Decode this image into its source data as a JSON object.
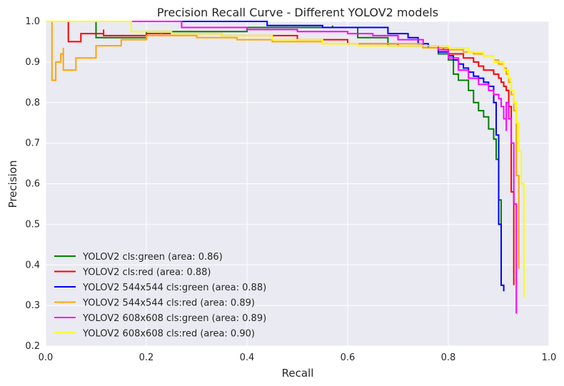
{
  "chart_data": {
    "type": "line",
    "title": "Precision Recall Curve - Different YOLOV2 models",
    "xlabel": "Recall",
    "ylabel": "Precision",
    "xlim": [
      0.0,
      1.0
    ],
    "ylim": [
      0.2,
      1.0
    ],
    "xticks": [
      "0.0",
      "0.2",
      "0.4",
      "0.6",
      "0.8",
      "1.0"
    ],
    "yticks": [
      "0.2",
      "0.3",
      "0.4",
      "0.5",
      "0.6",
      "0.7",
      "0.8",
      "0.9",
      "1.0"
    ],
    "grid": true,
    "legend_position": "lower-left",
    "background_color": "#eaeaf2",
    "series": [
      {
        "name": "YOLOV2 cls:green (area: 0.86)",
        "color": "#008000",
        "x": [
          0.0,
          0.1,
          0.1,
          0.2,
          0.4,
          0.57,
          0.57,
          0.62,
          0.62,
          0.68,
          0.68,
          0.75,
          0.75,
          0.78,
          0.78,
          0.8,
          0.8,
          0.81,
          0.81,
          0.82,
          0.82,
          0.84,
          0.84,
          0.85,
          0.85,
          0.86,
          0.86,
          0.87,
          0.87,
          0.88,
          0.88,
          0.89,
          0.89,
          0.895,
          0.895,
          0.9,
          0.9,
          0.905,
          0.905
        ],
        "y": [
          1.0,
          1.0,
          0.96,
          0.975,
          0.985,
          0.99,
          0.985,
          0.98,
          0.96,
          0.95,
          0.94,
          0.945,
          0.935,
          0.93,
          0.92,
          0.92,
          0.905,
          0.9,
          0.87,
          0.865,
          0.855,
          0.84,
          0.83,
          0.82,
          0.8,
          0.79,
          0.78,
          0.77,
          0.765,
          0.755,
          0.735,
          0.73,
          0.71,
          0.68,
          0.66,
          0.63,
          0.56,
          0.52,
          0.42
        ]
      },
      {
        "name": "YOLOV2 cls:red (area: 0.88)",
        "color": "#ff0000",
        "x": [
          0.0,
          0.045,
          0.045,
          0.07,
          0.08,
          0.115,
          0.115,
          0.2,
          0.35,
          0.5,
          0.6,
          0.7,
          0.78,
          0.79,
          0.8,
          0.83,
          0.85,
          0.86,
          0.87,
          0.89,
          0.9,
          0.905,
          0.91,
          0.915,
          0.92,
          0.92,
          0.925,
          0.925,
          0.93
        ],
        "y": [
          1.0,
          1.0,
          0.95,
          0.97,
          0.97,
          0.98,
          0.965,
          0.97,
          0.965,
          0.955,
          0.945,
          0.94,
          0.935,
          0.93,
          0.92,
          0.91,
          0.9,
          0.89,
          0.88,
          0.87,
          0.86,
          0.85,
          0.84,
          0.83,
          0.82,
          0.79,
          0.76,
          0.58,
          0.35
        ]
      },
      {
        "name": "YOLOV2 544x544 cls:green (area: 0.88)",
        "color": "#0000ff",
        "x": [
          0.0,
          0.44,
          0.44,
          0.55,
          0.55,
          0.68,
          0.68,
          0.72,
          0.74,
          0.76,
          0.78,
          0.8,
          0.81,
          0.82,
          0.83,
          0.84,
          0.85,
          0.86,
          0.87,
          0.88,
          0.88,
          0.89,
          0.89,
          0.895,
          0.895,
          0.9,
          0.9,
          0.905,
          0.905,
          0.91,
          0.91
        ],
        "y": [
          1.0,
          1.0,
          0.99,
          0.99,
          0.985,
          0.975,
          0.97,
          0.96,
          0.945,
          0.935,
          0.925,
          0.915,
          0.905,
          0.895,
          0.885,
          0.875,
          0.865,
          0.86,
          0.85,
          0.85,
          0.84,
          0.83,
          0.8,
          0.78,
          0.72,
          0.64,
          0.5,
          0.38,
          0.35,
          0.34,
          0.335
        ]
      },
      {
        "name": "YOLOV2 544x544 cls:red (area: 0.89)",
        "color": "#ffa500",
        "x": [
          0.0,
          0.0125,
          0.0125,
          0.02,
          0.03,
          0.035,
          0.035,
          0.06,
          0.1,
          0.15,
          0.2,
          0.23,
          0.23,
          0.3,
          0.38,
          0.45,
          0.5,
          0.55,
          0.6,
          0.65,
          0.7,
          0.75,
          0.8,
          0.83,
          0.85,
          0.87,
          0.89,
          0.9,
          0.91,
          0.915,
          0.92,
          0.925,
          0.93,
          0.935,
          0.935,
          0.94,
          0.94
        ],
        "y": [
          1.0,
          1.0,
          0.855,
          0.9,
          0.92,
          0.935,
          0.88,
          0.91,
          0.94,
          0.955,
          0.965,
          0.97,
          0.965,
          0.96,
          0.955,
          0.95,
          0.95,
          0.945,
          0.945,
          0.945,
          0.945,
          0.935,
          0.93,
          0.925,
          0.92,
          0.915,
          0.905,
          0.895,
          0.885,
          0.87,
          0.85,
          0.82,
          0.78,
          0.7,
          0.62,
          0.55,
          0.39
        ]
      },
      {
        "name": "YOLOV2 608x608 cls:green (area: 0.89)",
        "color": "#ff00ff",
        "x": [
          0.0,
          0.27,
          0.27,
          0.4,
          0.5,
          0.6,
          0.65,
          0.7,
          0.75,
          0.78,
          0.8,
          0.82,
          0.84,
          0.86,
          0.88,
          0.89,
          0.9,
          0.905,
          0.91,
          0.915,
          0.915,
          0.92,
          0.925,
          0.93,
          0.935,
          0.935
        ],
        "y": [
          1.0,
          1.0,
          0.985,
          0.98,
          0.975,
          0.97,
          0.965,
          0.955,
          0.94,
          0.93,
          0.91,
          0.88,
          0.86,
          0.845,
          0.83,
          0.82,
          0.81,
          0.79,
          0.76,
          0.73,
          0.8,
          0.76,
          0.7,
          0.55,
          0.45,
          0.28
        ]
      },
      {
        "name": "YOLOV2 608x608 cls:red (area: 0.90)",
        "color": "#ffff00",
        "x": [
          0.0,
          0.17,
          0.17,
          0.25,
          0.35,
          0.45,
          0.55,
          0.62,
          0.68,
          0.75,
          0.8,
          0.84,
          0.87,
          0.89,
          0.91,
          0.92,
          0.925,
          0.93,
          0.935,
          0.94,
          0.945,
          0.95,
          0.95
        ],
        "y": [
          1.0,
          1.0,
          0.975,
          0.97,
          0.965,
          0.955,
          0.945,
          0.94,
          0.94,
          0.94,
          0.935,
          0.925,
          0.915,
          0.9,
          0.88,
          0.86,
          0.83,
          0.8,
          0.75,
          0.68,
          0.6,
          0.45,
          0.32
        ]
      }
    ]
  }
}
